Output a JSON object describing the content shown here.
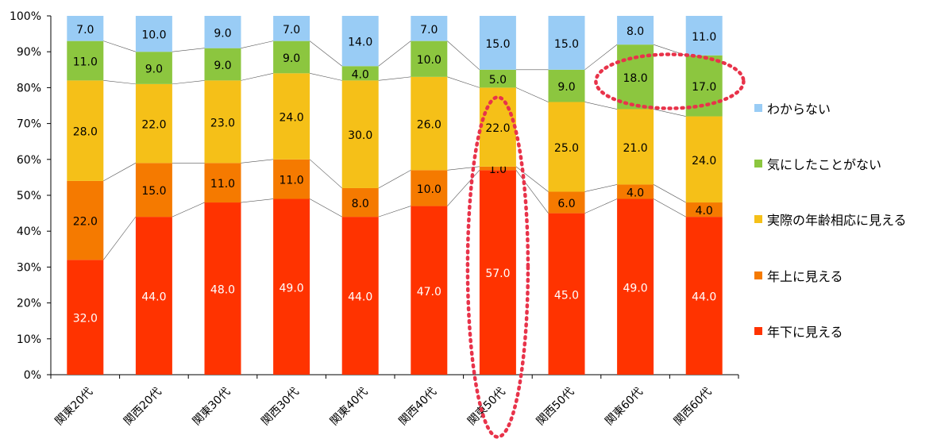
{
  "chart_data": {
    "type": "bar",
    "stacked": true,
    "categories": [
      "関東20代",
      "関西20代",
      "関東30代",
      "関西30代",
      "関東40代",
      "関西40代",
      "関東50代",
      "関西50代",
      "関東60代",
      "関西60代"
    ],
    "series": [
      {
        "name": "年下に見える",
        "color": "#FF3300",
        "label_color": "#ffffff",
        "values": [
          32.0,
          44.0,
          48.0,
          49.0,
          44.0,
          47.0,
          57.0,
          45.0,
          49.0,
          44.0
        ]
      },
      {
        "name": "年上に見える",
        "color": "#F57A00",
        "label_color": "#000000",
        "values": [
          22.0,
          15.0,
          11.0,
          11.0,
          8.0,
          10.0,
          1.0,
          6.0,
          4.0,
          4.0
        ]
      },
      {
        "name": "実際の年齢相応に見える",
        "color": "#F5C018",
        "label_color": "#000000",
        "values": [
          28.0,
          22.0,
          23.0,
          24.0,
          30.0,
          26.0,
          22.0,
          25.0,
          21.0,
          24.0
        ]
      },
      {
        "name": "気にしたことがない",
        "color": "#8CC63F",
        "label_color": "#000000",
        "values": [
          11.0,
          9.0,
          9.0,
          9.0,
          4.0,
          10.0,
          5.0,
          9.0,
          18.0,
          17.0
        ]
      },
      {
        "name": "わからない",
        "color": "#99CCF5",
        "label_color": "#000000",
        "values": [
          7.0,
          10.0,
          9.0,
          7.0,
          14.0,
          7.0,
          15.0,
          15.0,
          8.0,
          11.0
        ]
      }
    ],
    "y_ticks": [
      "0%",
      "10%",
      "20%",
      "30%",
      "40%",
      "50%",
      "60%",
      "70%",
      "80%",
      "90%",
      "100%"
    ],
    "ylim": [
      0,
      100
    ],
    "legend_order": [
      "わからない",
      "気にしたことがない",
      "実際の年齢相応に見える",
      "年上に見える",
      "年下に見える"
    ],
    "legend_position": "right",
    "grid": false,
    "series_lines": true,
    "highlights": [
      {
        "shape": "dotted-ellipse",
        "category": "関東50代",
        "color": "#E8334A"
      },
      {
        "shape": "dotted-ellipse",
        "categories": [
          "関東60代",
          "関西60代"
        ],
        "series": "気にしたことがない",
        "color": "#E8334A"
      }
    ]
  }
}
